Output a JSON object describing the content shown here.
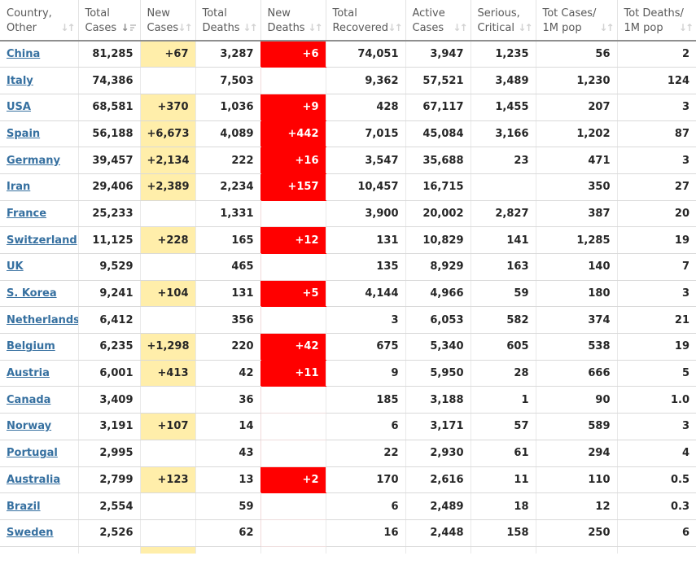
{
  "table": {
    "columns": [
      {
        "id": "country",
        "line1": "Country,",
        "line2": "Other",
        "sorted": "none"
      },
      {
        "id": "total_cases",
        "line1": "Total",
        "line2": "Cases",
        "sorted": "desc"
      },
      {
        "id": "new_cases",
        "line1": "New",
        "line2": "Cases",
        "sorted": "none"
      },
      {
        "id": "total_deaths",
        "line1": "Total",
        "line2": "Deaths",
        "sorted": "none"
      },
      {
        "id": "new_deaths",
        "line1": "New",
        "line2": "Deaths",
        "sorted": "none"
      },
      {
        "id": "total_recovered",
        "line1": "Total",
        "line2": "Recovered",
        "sorted": "none"
      },
      {
        "id": "active_cases",
        "line1": "Active",
        "line2": "Cases",
        "sorted": "none"
      },
      {
        "id": "serious_critical",
        "line1": "Serious,",
        "line2": "Critical",
        "sorted": "none"
      },
      {
        "id": "cases_per_1m",
        "line1": "Tot Cases/",
        "line2": "1M pop",
        "sorted": "none"
      },
      {
        "id": "deaths_per_1m",
        "line1": "Tot Deaths/",
        "line2": "1M pop",
        "sorted": "none"
      }
    ],
    "rows": [
      {
        "country": "China",
        "total_cases": "81,285",
        "new_cases": "+67",
        "total_deaths": "3,287",
        "new_deaths": "+6",
        "total_recovered": "74,051",
        "active_cases": "3,947",
        "serious_critical": "1,235",
        "cases_per_1m": "56",
        "deaths_per_1m": "2"
      },
      {
        "country": "Italy",
        "total_cases": "74,386",
        "new_cases": "",
        "total_deaths": "7,503",
        "new_deaths": "",
        "total_recovered": "9,362",
        "active_cases": "57,521",
        "serious_critical": "3,489",
        "cases_per_1m": "1,230",
        "deaths_per_1m": "124"
      },
      {
        "country": "USA",
        "total_cases": "68,581",
        "new_cases": "+370",
        "total_deaths": "1,036",
        "new_deaths": "+9",
        "total_recovered": "428",
        "active_cases": "67,117",
        "serious_critical": "1,455",
        "cases_per_1m": "207",
        "deaths_per_1m": "3"
      },
      {
        "country": "Spain",
        "total_cases": "56,188",
        "new_cases": "+6,673",
        "total_deaths": "4,089",
        "new_deaths": "+442",
        "total_recovered": "7,015",
        "active_cases": "45,084",
        "serious_critical": "3,166",
        "cases_per_1m": "1,202",
        "deaths_per_1m": "87"
      },
      {
        "country": "Germany",
        "total_cases": "39,457",
        "new_cases": "+2,134",
        "total_deaths": "222",
        "new_deaths": "+16",
        "total_recovered": "3,547",
        "active_cases": "35,688",
        "serious_critical": "23",
        "cases_per_1m": "471",
        "deaths_per_1m": "3"
      },
      {
        "country": "Iran",
        "total_cases": "29,406",
        "new_cases": "+2,389",
        "total_deaths": "2,234",
        "new_deaths": "+157",
        "total_recovered": "10,457",
        "active_cases": "16,715",
        "serious_critical": "",
        "cases_per_1m": "350",
        "deaths_per_1m": "27"
      },
      {
        "country": "France",
        "total_cases": "25,233",
        "new_cases": "",
        "total_deaths": "1,331",
        "new_deaths": "",
        "total_recovered": "3,900",
        "active_cases": "20,002",
        "serious_critical": "2,827",
        "cases_per_1m": "387",
        "deaths_per_1m": "20"
      },
      {
        "country": "Switzerland",
        "total_cases": "11,125",
        "new_cases": "+228",
        "total_deaths": "165",
        "new_deaths": "+12",
        "total_recovered": "131",
        "active_cases": "10,829",
        "serious_critical": "141",
        "cases_per_1m": "1,285",
        "deaths_per_1m": "19"
      },
      {
        "country": "UK",
        "total_cases": "9,529",
        "new_cases": "",
        "total_deaths": "465",
        "new_deaths": "",
        "total_recovered": "135",
        "active_cases": "8,929",
        "serious_critical": "163",
        "cases_per_1m": "140",
        "deaths_per_1m": "7"
      },
      {
        "country": "S. Korea",
        "total_cases": "9,241",
        "new_cases": "+104",
        "total_deaths": "131",
        "new_deaths": "+5",
        "total_recovered": "4,144",
        "active_cases": "4,966",
        "serious_critical": "59",
        "cases_per_1m": "180",
        "deaths_per_1m": "3"
      },
      {
        "country": "Netherlands",
        "total_cases": "6,412",
        "new_cases": "",
        "total_deaths": "356",
        "new_deaths": "",
        "total_recovered": "3",
        "active_cases": "6,053",
        "serious_critical": "582",
        "cases_per_1m": "374",
        "deaths_per_1m": "21"
      },
      {
        "country": "Belgium",
        "total_cases": "6,235",
        "new_cases": "+1,298",
        "total_deaths": "220",
        "new_deaths": "+42",
        "total_recovered": "675",
        "active_cases": "5,340",
        "serious_critical": "605",
        "cases_per_1m": "538",
        "deaths_per_1m": "19"
      },
      {
        "country": "Austria",
        "total_cases": "6,001",
        "new_cases": "+413",
        "total_deaths": "42",
        "new_deaths": "+11",
        "total_recovered": "9",
        "active_cases": "5,950",
        "serious_critical": "28",
        "cases_per_1m": "666",
        "deaths_per_1m": "5"
      },
      {
        "country": "Canada",
        "total_cases": "3,409",
        "new_cases": "",
        "total_deaths": "36",
        "new_deaths": "",
        "total_recovered": "185",
        "active_cases": "3,188",
        "serious_critical": "1",
        "cases_per_1m": "90",
        "deaths_per_1m": "1.0"
      },
      {
        "country": "Norway",
        "total_cases": "3,191",
        "new_cases": "+107",
        "total_deaths": "14",
        "new_deaths": "",
        "total_recovered": "6",
        "active_cases": "3,171",
        "serious_critical": "57",
        "cases_per_1m": "589",
        "deaths_per_1m": "3"
      },
      {
        "country": "Portugal",
        "total_cases": "2,995",
        "new_cases": "",
        "total_deaths": "43",
        "new_deaths": "",
        "total_recovered": "22",
        "active_cases": "2,930",
        "serious_critical": "61",
        "cases_per_1m": "294",
        "deaths_per_1m": "4"
      },
      {
        "country": "Australia",
        "total_cases": "2,799",
        "new_cases": "+123",
        "total_deaths": "13",
        "new_deaths": "+2",
        "total_recovered": "170",
        "active_cases": "2,616",
        "serious_critical": "11",
        "cases_per_1m": "110",
        "deaths_per_1m": "0.5"
      },
      {
        "country": "Brazil",
        "total_cases": "2,554",
        "new_cases": "",
        "total_deaths": "59",
        "new_deaths": "",
        "total_recovered": "6",
        "active_cases": "2,489",
        "serious_critical": "18",
        "cases_per_1m": "12",
        "deaths_per_1m": "0.3"
      },
      {
        "country": "Sweden",
        "total_cases": "2,526",
        "new_cases": "",
        "total_deaths": "62",
        "new_deaths": "",
        "total_recovered": "16",
        "active_cases": "2,448",
        "serious_critical": "158",
        "cases_per_1m": "250",
        "deaths_per_1m": "6"
      }
    ],
    "partial_next_row": {
      "visible": true,
      "highlighted_column": "new_cases"
    }
  },
  "colors": {
    "link_blue": "#3670a0",
    "highlight_yellow": "#ffeeaa",
    "highlight_red": "#ff0000",
    "header_text": "#595959",
    "cell_text": "#262626",
    "header_bottom_border": "#8f8f8f"
  }
}
